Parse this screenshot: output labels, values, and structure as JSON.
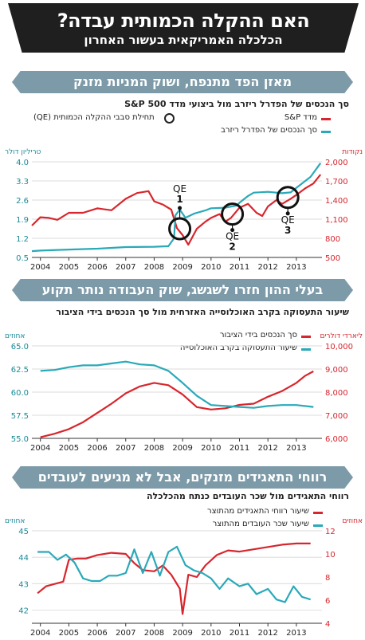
{
  "header": {
    "title": "האם ההקלה הכמותית עבדה?",
    "subtitle": "הכלכלה האמריקאית בעשור האחרון"
  },
  "colors": {
    "red": "#d7262d",
    "teal": "#2aa9b8",
    "band": "#7d9aa8",
    "header": "#1f1f1f"
  },
  "sections": [
    {
      "band": "מאזן הפד מתנפח, ושוק המניות מזנק",
      "subtitle": "סך הנכסים של הפדרל ריזרב מול ביצועי מדד S&P 500"
    },
    {
      "band": "בעלי ההון חזרו לשגשג, שוק העבודה נותר תקוע",
      "subtitle": "שיעור התעסוקה בקרב האוכלוסייה האזרחית מול סך הנכסים בידי הציבור"
    },
    {
      "band": "רווחי התאגידים מזנקים, אבל לא מגיעים לעובדים",
      "subtitle": "רווחי התאגידים מול שכר העובדים כנתח מהכלכלה"
    }
  ],
  "chart_data": [
    {
      "type": "line",
      "title": "סך הנכסים של הפדרל ריזרב מול ביצועי מדד S&P 500",
      "left_axis_label": "טריליון דולר",
      "right_axis_label": "נקודות",
      "left_ticks": [
        "0.5",
        "1.2",
        "1.9",
        "2.6",
        "3.3",
        "4.0"
      ],
      "right_ticks": [
        "500",
        "800",
        "1,100",
        "1,400",
        "1,700",
        "2,000"
      ],
      "x_ticks": [
        "2004",
        "2005",
        "2006",
        "2007",
        "2008",
        "2009",
        "2010",
        "2011",
        "2012",
        "2013"
      ],
      "xlim": [
        2003.7,
        2013.9
      ],
      "ylim_left": [
        0.5,
        4.0
      ],
      "ylim_right": [
        500,
        2000
      ],
      "legend": {
        "sp": "מדד S&P",
        "fed": "סך הנכסים של הפדרל ריזרב",
        "qe": "תחילת סבבי ההקלה הכמותית (QE)"
      },
      "annotations": [
        {
          "label": "QE",
          "num": "1",
          "x": 2008.9,
          "y_right": 950
        },
        {
          "label": "QE",
          "num": "2",
          "x": 2010.75,
          "y_right": 1180
        },
        {
          "label": "QE",
          "num": "3",
          "x": 2012.7,
          "y_right": 1440
        }
      ],
      "series": [
        {
          "name": "מדד S&P",
          "axis": "right",
          "color": "#d7262d",
          "points": [
            [
              2003.7,
              1000
            ],
            [
              2004,
              1130
            ],
            [
              2004.3,
              1120
            ],
            [
              2004.6,
              1090
            ],
            [
              2005,
              1200
            ],
            [
              2005.5,
              1200
            ],
            [
              2006,
              1270
            ],
            [
              2006.5,
              1240
            ],
            [
              2007,
              1420
            ],
            [
              2007.4,
              1510
            ],
            [
              2007.8,
              1540
            ],
            [
              2008,
              1380
            ],
            [
              2008.3,
              1330
            ],
            [
              2008.6,
              1250
            ],
            [
              2008.8,
              960
            ],
            [
              2009.0,
              850
            ],
            [
              2009.2,
              700
            ],
            [
              2009.5,
              950
            ],
            [
              2009.8,
              1060
            ],
            [
              2010,
              1120
            ],
            [
              2010.3,
              1180
            ],
            [
              2010.5,
              1060
            ],
            [
              2010.7,
              1120
            ],
            [
              2011,
              1280
            ],
            [
              2011.3,
              1340
            ],
            [
              2011.6,
              1200
            ],
            [
              2011.8,
              1150
            ],
            [
              2012,
              1300
            ],
            [
              2012.3,
              1400
            ],
            [
              2012.5,
              1340
            ],
            [
              2012.8,
              1420
            ],
            [
              2013,
              1480
            ],
            [
              2013.3,
              1580
            ],
            [
              2013.6,
              1660
            ],
            [
              2013.85,
              1800
            ]
          ]
        },
        {
          "name": "סך הנכסים של הפדרל ריזרב",
          "axis": "left",
          "color": "#2aa9b8",
          "points": [
            [
              2003.7,
              0.73
            ],
            [
              2004,
              0.75
            ],
            [
              2005,
              0.79
            ],
            [
              2006,
              0.82
            ],
            [
              2007,
              0.88
            ],
            [
              2008,
              0.89
            ],
            [
              2008.5,
              0.91
            ],
            [
              2008.7,
              1.2
            ],
            [
              2008.75,
              2.05
            ],
            [
              2008.9,
              2.25
            ],
            [
              2009.1,
              1.95
            ],
            [
              2009.4,
              2.1
            ],
            [
              2009.8,
              2.22
            ],
            [
              2010,
              2.3
            ],
            [
              2010.5,
              2.32
            ],
            [
              2010.9,
              2.4
            ],
            [
              2011,
              2.5
            ],
            [
              2011.3,
              2.75
            ],
            [
              2011.5,
              2.87
            ],
            [
              2012,
              2.9
            ],
            [
              2012.5,
              2.85
            ],
            [
              2012.8,
              2.88
            ],
            [
              2013,
              3.05
            ],
            [
              2013.5,
              3.45
            ],
            [
              2013.85,
              3.95
            ]
          ]
        }
      ]
    },
    {
      "type": "line",
      "title": "שיעור התעסוקה בקרב האוכלוסייה האזרחית מול סך הנכסים בידי הציבור",
      "left_axis_label": "אחוזים",
      "right_axis_label": "ליארדי דולרים",
      "left_ticks": [
        "55.0",
        "57.5",
        "60.0",
        "62.5",
        "65.0"
      ],
      "right_ticks": [
        "6,000",
        "7,000",
        "8,000",
        "9,000",
        "10,000"
      ],
      "x_ticks": [
        "2004",
        "2005",
        "2006",
        "2007",
        "2008",
        "2009",
        "2010",
        "2011",
        "2012",
        "2013"
      ],
      "xlim": [
        2003.7,
        2013.9
      ],
      "ylim_left": [
        55,
        65
      ],
      "ylim_right": [
        6000,
        10000
      ],
      "legend": {
        "assets": "סך הנכסים בידי הציבור",
        "employment": "שיעור התעסוקה בקרב האוכלוסייה"
      },
      "series": [
        {
          "name": "סך הנכסים בידי הציבור",
          "axis": "right",
          "color": "#d7262d",
          "points": [
            [
              2004,
              6050
            ],
            [
              2004.5,
              6200
            ],
            [
              2005,
              6400
            ],
            [
              2005.5,
              6700
            ],
            [
              2006,
              7100
            ],
            [
              2006.5,
              7500
            ],
            [
              2007,
              7950
            ],
            [
              2007.5,
              8250
            ],
            [
              2008,
              8400
            ],
            [
              2008.5,
              8300
            ],
            [
              2009,
              7900
            ],
            [
              2009.5,
              7350
            ],
            [
              2010,
              7250
            ],
            [
              2010.5,
              7300
            ],
            [
              2011,
              7450
            ],
            [
              2011.5,
              7500
            ],
            [
              2012,
              7800
            ],
            [
              2012.5,
              8050
            ],
            [
              2013,
              8400
            ],
            [
              2013.3,
              8700
            ],
            [
              2013.6,
              8900
            ]
          ]
        },
        {
          "name": "שיעור התעסוקה בקרב האוכלוסייה",
          "axis": "left",
          "color": "#2aa9b8",
          "points": [
            [
              2004,
              62.3
            ],
            [
              2004.5,
              62.4
            ],
            [
              2005,
              62.7
            ],
            [
              2005.5,
              62.9
            ],
            [
              2006,
              62.9
            ],
            [
              2006.5,
              63.1
            ],
            [
              2007,
              63.3
            ],
            [
              2007.5,
              63.0
            ],
            [
              2008,
              62.9
            ],
            [
              2008.5,
              62.3
            ],
            [
              2009,
              61.0
            ],
            [
              2009.5,
              59.6
            ],
            [
              2010,
              58.6
            ],
            [
              2010.5,
              58.5
            ],
            [
              2011,
              58.4
            ],
            [
              2011.5,
              58.3
            ],
            [
              2012,
              58.5
            ],
            [
              2012.5,
              58.6
            ],
            [
              2013,
              58.6
            ],
            [
              2013.3,
              58.5
            ],
            [
              2013.6,
              58.4
            ]
          ]
        }
      ]
    },
    {
      "type": "line",
      "title": "רווחי התאגידים מול שכר העובדים כנתח מהכלכלה",
      "left_axis_label": "אחוזים",
      "right_axis_label": "אחוזים",
      "left_ticks": [
        "42",
        "43",
        "44",
        "45"
      ],
      "right_ticks": [
        "4",
        "6",
        "8",
        "10",
        "12"
      ],
      "x_ticks": [
        "2004",
        "2005",
        "2006",
        "2007",
        "2008",
        "2009",
        "2010",
        "2011",
        "2012",
        "2013"
      ],
      "xlim": [
        2003.7,
        2013.9
      ],
      "ylim_left": [
        41.5,
        45
      ],
      "ylim_right": [
        4,
        12
      ],
      "legend": {
        "profits": "שיעור רווחי התאגידים מהתוצר",
        "wages": "שיעור שכר העובדים מהתוצר"
      },
      "series": [
        {
          "name": "שיעור רווחי התאגידים מהתוצר",
          "axis": "right",
          "color": "#d7262d",
          "points": [
            [
              2003.9,
              6.6
            ],
            [
              2004.2,
              7.2
            ],
            [
              2004.5,
              7.4
            ],
            [
              2004.8,
              7.6
            ],
            [
              2005.0,
              9.5
            ],
            [
              2005.3,
              9.6
            ],
            [
              2005.6,
              9.6
            ],
            [
              2006.0,
              9.9
            ],
            [
              2006.5,
              10.1
            ],
            [
              2007.0,
              10.0
            ],
            [
              2007.3,
              9.2
            ],
            [
              2007.6,
              8.6
            ],
            [
              2008.0,
              8.5
            ],
            [
              2008.3,
              9.0
            ],
            [
              2008.6,
              8.2
            ],
            [
              2008.9,
              7.0
            ],
            [
              2009.0,
              4.8
            ],
            [
              2009.2,
              8.2
            ],
            [
              2009.5,
              8.0
            ],
            [
              2009.8,
              9.0
            ],
            [
              2010.2,
              9.9
            ],
            [
              2010.6,
              10.3
            ],
            [
              2011.0,
              10.2
            ],
            [
              2011.5,
              10.4
            ],
            [
              2012.0,
              10.6
            ],
            [
              2012.5,
              10.8
            ],
            [
              2013.0,
              10.9
            ],
            [
              2013.5,
              10.9
            ]
          ]
        },
        {
          "name": "שיעור שכר העובדים מהתוצר",
          "axis": "left",
          "color": "#2aa9b8",
          "points": [
            [
              2003.9,
              44.2
            ],
            [
              2004.3,
              44.2
            ],
            [
              2004.6,
              43.9
            ],
            [
              2004.9,
              44.1
            ],
            [
              2005.2,
              43.8
            ],
            [
              2005.5,
              43.2
            ],
            [
              2005.8,
              43.1
            ],
            [
              2006.1,
              43.1
            ],
            [
              2006.4,
              43.3
            ],
            [
              2006.7,
              43.3
            ],
            [
              2007.0,
              43.4
            ],
            [
              2007.3,
              44.3
            ],
            [
              2007.6,
              43.4
            ],
            [
              2007.9,
              44.2
            ],
            [
              2008.2,
              43.3
            ],
            [
              2008.5,
              44.2
            ],
            [
              2008.8,
              44.4
            ],
            [
              2009.1,
              43.7
            ],
            [
              2009.4,
              43.5
            ],
            [
              2009.7,
              43.4
            ],
            [
              2010.0,
              43.2
            ],
            [
              2010.3,
              42.8
            ],
            [
              2010.6,
              43.2
            ],
            [
              2011.0,
              42.9
            ],
            [
              2011.3,
              43.0
            ],
            [
              2011.6,
              42.6
            ],
            [
              2012.0,
              42.8
            ],
            [
              2012.3,
              42.4
            ],
            [
              2012.6,
              42.3
            ],
            [
              2012.9,
              42.9
            ],
            [
              2013.2,
              42.5
            ],
            [
              2013.5,
              42.4
            ]
          ]
        }
      ]
    }
  ]
}
